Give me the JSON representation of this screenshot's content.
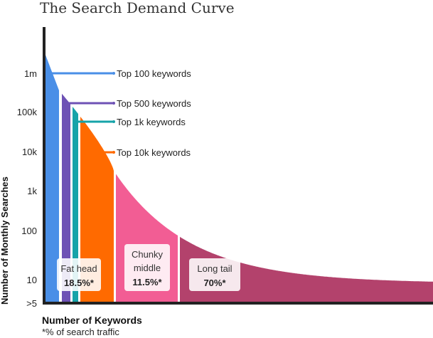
{
  "chart_data": {
    "type": "area",
    "title": "The Search Demand Curve",
    "xlabel": "Number of Keywords",
    "footnote": "*% of search traffic",
    "ylabel": "Number of Monthly Searches",
    "yscale": "log",
    "y_ticks": [
      "1m",
      "100k",
      "10k",
      "1k",
      "100",
      "10",
      ">5"
    ],
    "segments": [
      {
        "name": "Top 100 keywords",
        "color": "#4a8fe7"
      },
      {
        "name": "Top 500 keywords",
        "color": "#6e52b5"
      },
      {
        "name": "Top 1k keywords",
        "color": "#16a3a9"
      },
      {
        "name": "Top 10k keywords",
        "color": "#ff6a00"
      },
      {
        "name": "Chunky middle",
        "color": "#f25d94"
      },
      {
        "name": "Long tail",
        "color": "#b3426c"
      }
    ],
    "callouts": [
      {
        "label": "Top 100 keywords",
        "color": "#4a8fe7"
      },
      {
        "label": "Top 500 keywords",
        "color": "#6e52b5"
      },
      {
        "label": "Top 1k keywords",
        "color": "#16a3a9"
      },
      {
        "label": "Top 10k keywords",
        "color": "#ff6a00"
      }
    ],
    "boxes": [
      {
        "line1": "Fat head",
        "line2": "",
        "share": "18.5%*"
      },
      {
        "line1": "Chunky",
        "line2": "middle",
        "share": "11.5%*"
      },
      {
        "line1": "Long tail",
        "line2": "",
        "share": "70%*"
      }
    ],
    "grid": false,
    "legend": "none"
  }
}
